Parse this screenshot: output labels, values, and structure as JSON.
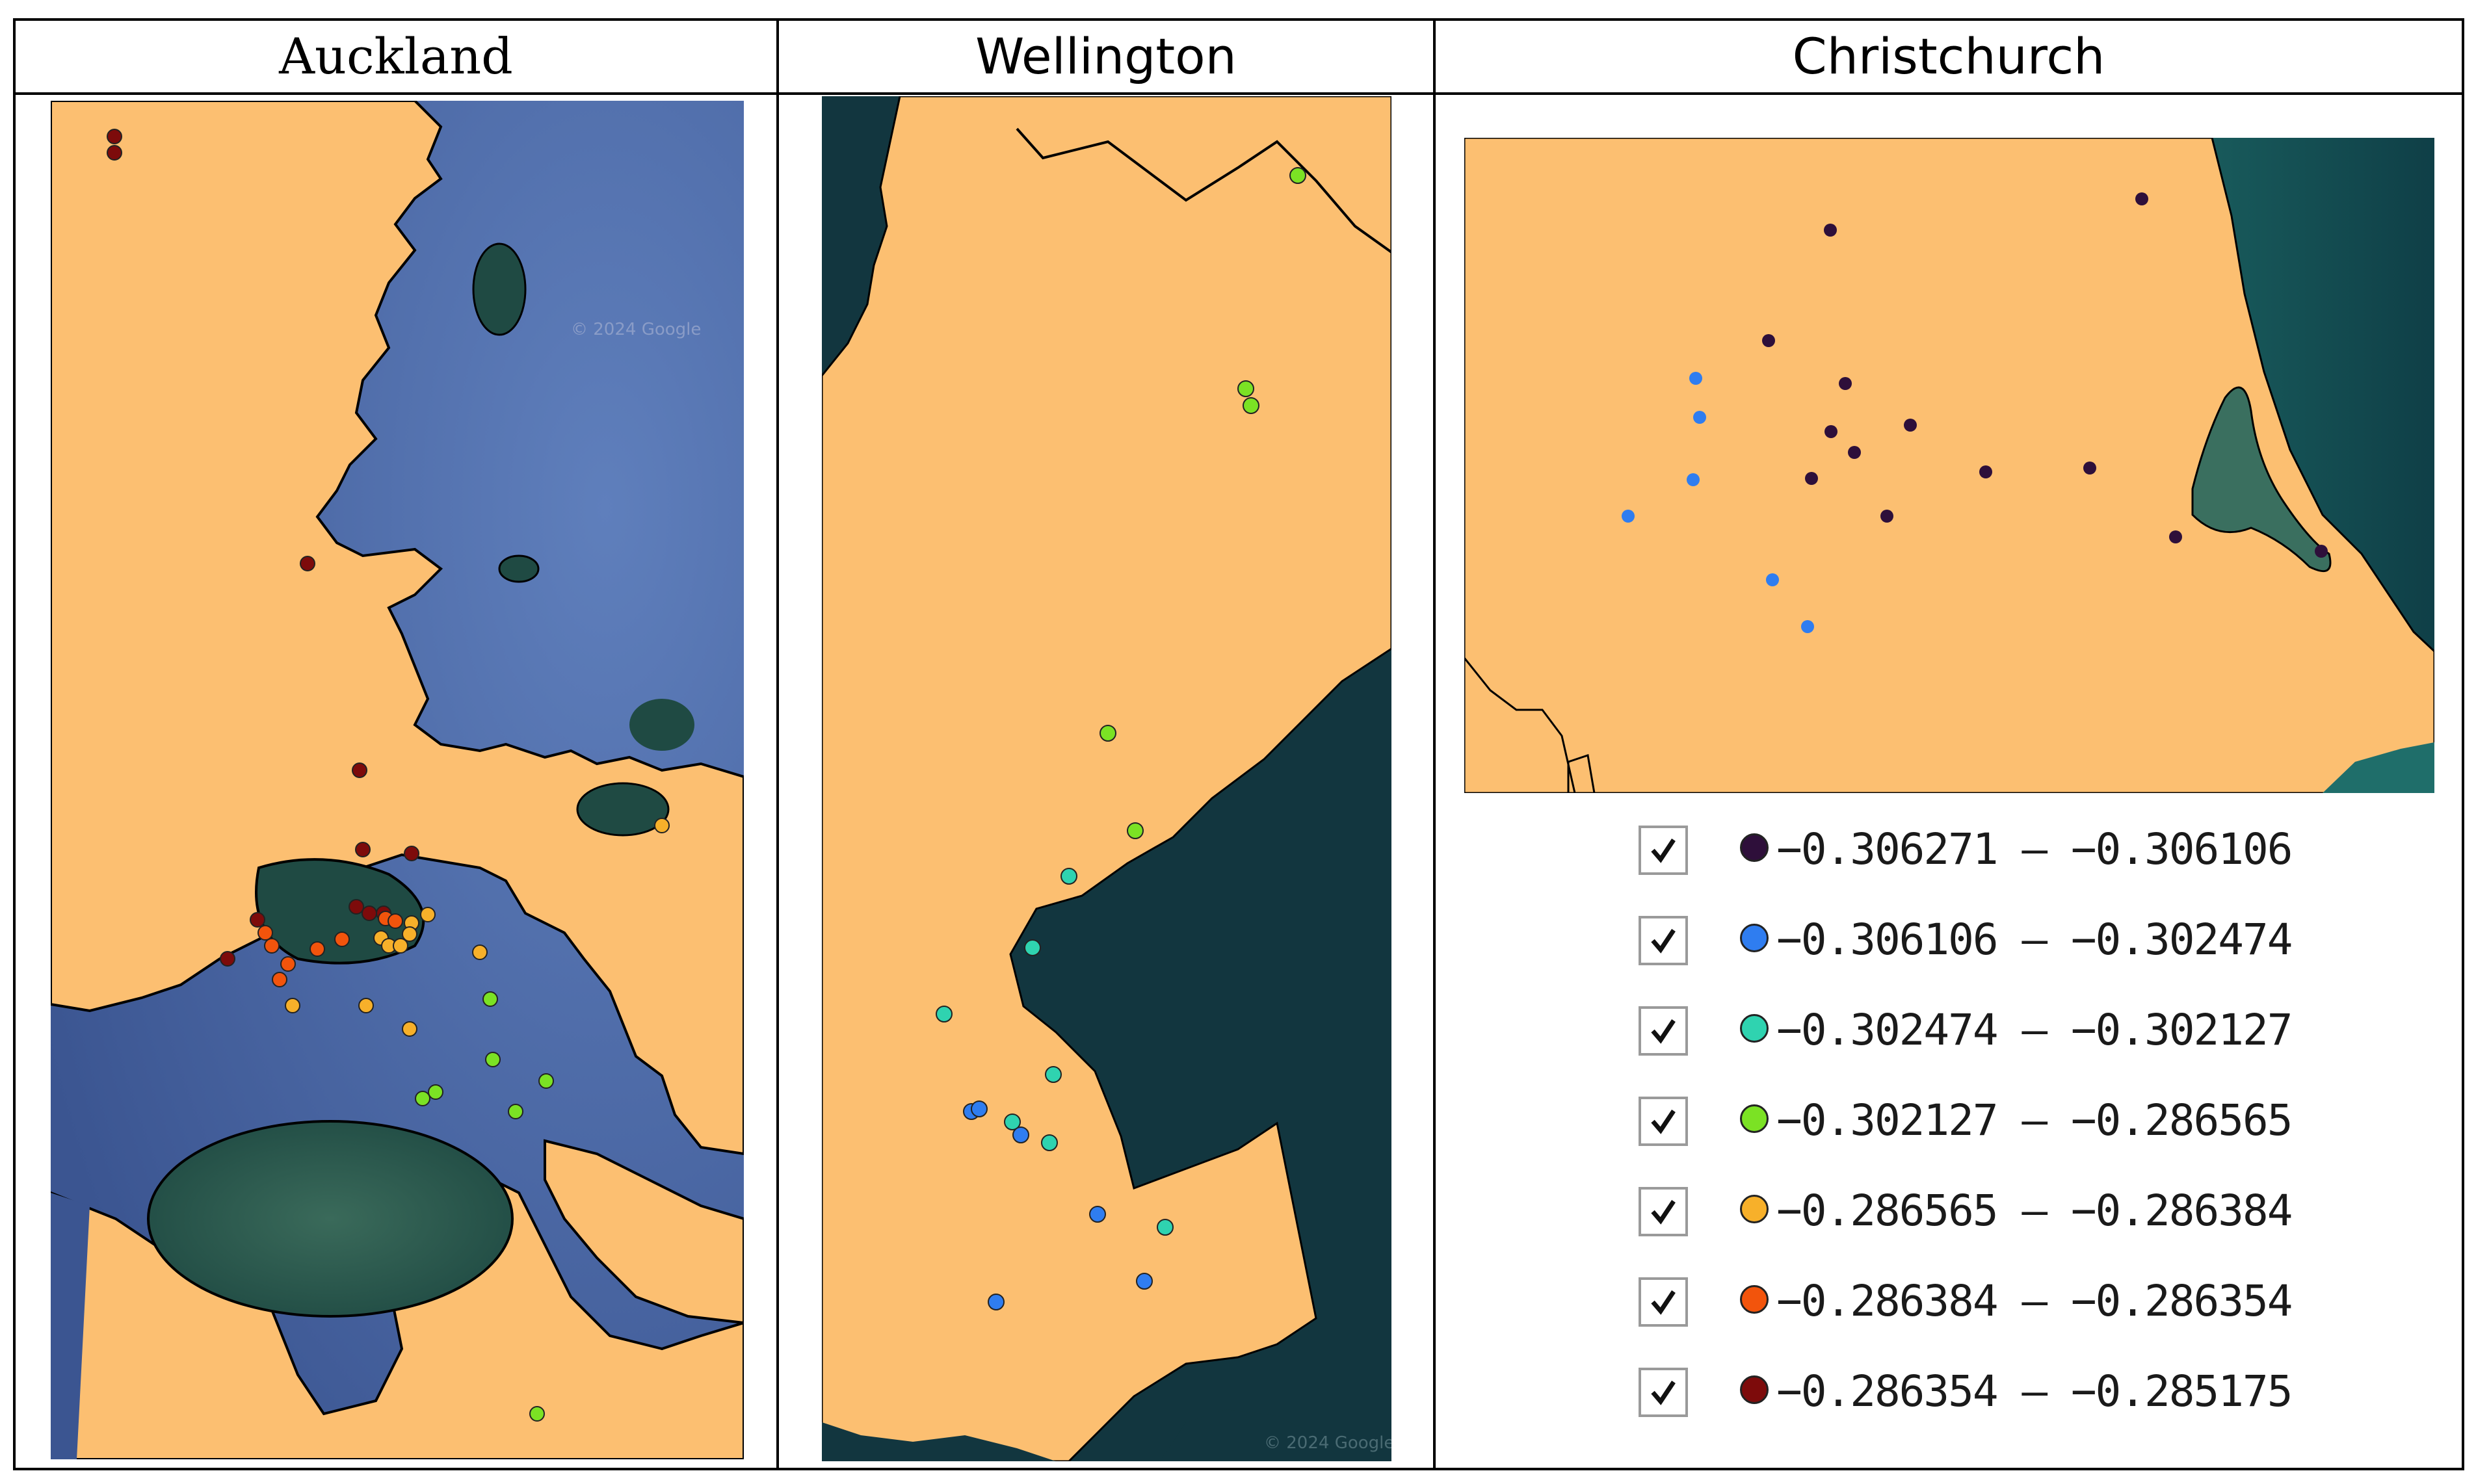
{
  "headers": {
    "auckland": "Auckland",
    "wellington": "Wellington",
    "christchurch": "Christchurch"
  },
  "colors": {
    "land": "#fcbf71",
    "sea_deep": "#4c6aa7",
    "sea_shallow": "#1c4a4a",
    "coast": "#000000",
    "bins": [
      "#2e0f3a",
      "#2f7df0",
      "#2fd3b0",
      "#7be224",
      "#f7b02a",
      "#f2540c",
      "#7d0b0b"
    ]
  },
  "watermark": "© 2024 Google",
  "legend": [
    {
      "checked": true,
      "range": "−0.306271 — −0.306106",
      "color": "#2e0f3a"
    },
    {
      "checked": true,
      "range": "−0.306106 — −0.302474",
      "color": "#2f7df0"
    },
    {
      "checked": true,
      "range": "−0.302474 — −0.302127",
      "color": "#2fd3b0"
    },
    {
      "checked": true,
      "range": "−0.302127 — −0.286565",
      "color": "#7be224"
    },
    {
      "checked": true,
      "range": "−0.286565 — −0.286384",
      "color": "#f7b02a"
    },
    {
      "checked": true,
      "range": "−0.286384 — −0.286354",
      "color": "#f2540c"
    },
    {
      "checked": true,
      "range": "−0.286354 — −0.285175",
      "color": "#7d0b0b"
    }
  ]
}
